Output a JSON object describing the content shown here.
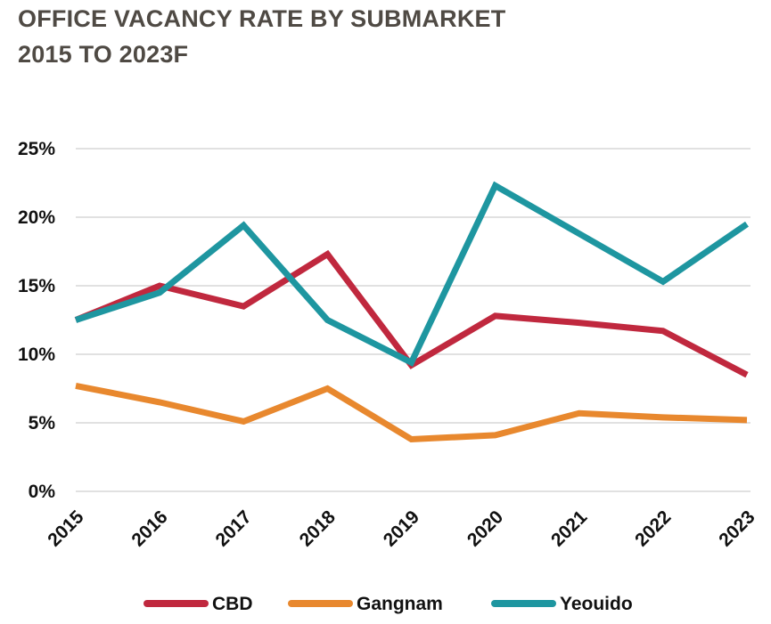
{
  "header": {
    "title_line1": "OFFICE VACANCY RATE BY SUBMARKET",
    "title_line2": "2015 TO 2023F"
  },
  "chart_data": {
    "type": "line",
    "title": "OFFICE VACANCY RATE BY SUBMARKET 2015 TO 2023F",
    "xlabel": "",
    "ylabel": "",
    "categories": [
      "2015",
      "2016",
      "2017",
      "2018",
      "2019",
      "2020",
      "2021",
      "2022",
      "2023"
    ],
    "ylim": [
      0,
      25
    ],
    "yticks": [
      0,
      5,
      10,
      15,
      20,
      25
    ],
    "ytick_labels": [
      "0%",
      "5%",
      "10%",
      "15%",
      "20%",
      "25%"
    ],
    "grid": true,
    "legend_position": "bottom",
    "series": [
      {
        "name": "CBD",
        "color": "#c0283e",
        "values": [
          12.5,
          15.0,
          13.5,
          17.3,
          9.2,
          12.8,
          12.3,
          11.7,
          8.5
        ]
      },
      {
        "name": "Gangnam",
        "color": "#e8882e",
        "values": [
          7.7,
          6.5,
          5.1,
          7.5,
          3.8,
          4.1,
          5.7,
          5.4,
          5.2
        ]
      },
      {
        "name": "Yeouido",
        "color": "#1e96a0",
        "values": [
          12.5,
          14.5,
          19.4,
          12.5,
          9.4,
          22.3,
          18.8,
          15.3,
          19.5
        ]
      }
    ]
  }
}
